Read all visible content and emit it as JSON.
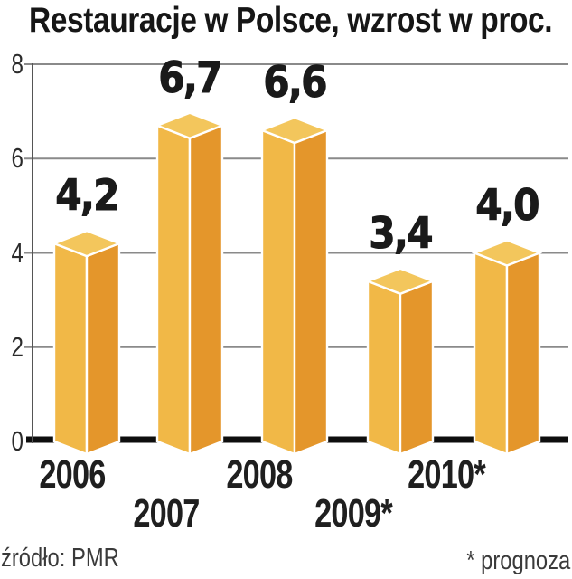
{
  "page": {
    "background": "#FFFFFF"
  },
  "header": {
    "title": "Restauracje w Polsce, wzrost w proc."
  },
  "footer": {
    "source": "źródło: PMR",
    "footnote": "* prognoza"
  },
  "chart_data": {
    "type": "bar",
    "title": "Restauracje w Polsce, wzrost w proc.",
    "categories": [
      "2006",
      "2007",
      "2008",
      "2009*",
      "2010*"
    ],
    "values": [
      4.2,
      6.7,
      6.6,
      3.4,
      4.0
    ],
    "value_labels": [
      "4,2",
      "6,7",
      "6,6",
      "3,4",
      "4,0"
    ],
    "xlabel": "",
    "ylabel": "",
    "ylim": [
      0,
      8
    ],
    "yticks": [
      0,
      2,
      4,
      6,
      8
    ],
    "grid": true,
    "legend": "none",
    "bar_style": "3d-column",
    "source": "źródło: PMR",
    "footnote": "* prognoza",
    "colors": {
      "bar_top": "#F3C65C",
      "bar_left": "#F1B847",
      "bar_right": "#E4962B",
      "bar_edge": "#FFFFFF",
      "grid": "#8A8A8A",
      "axis_line": "#555555",
      "baseline": "#0E0E0E",
      "text": "#1A1A1A",
      "muted_text": "#3A3A3A",
      "background": "#FFFFFF"
    }
  }
}
